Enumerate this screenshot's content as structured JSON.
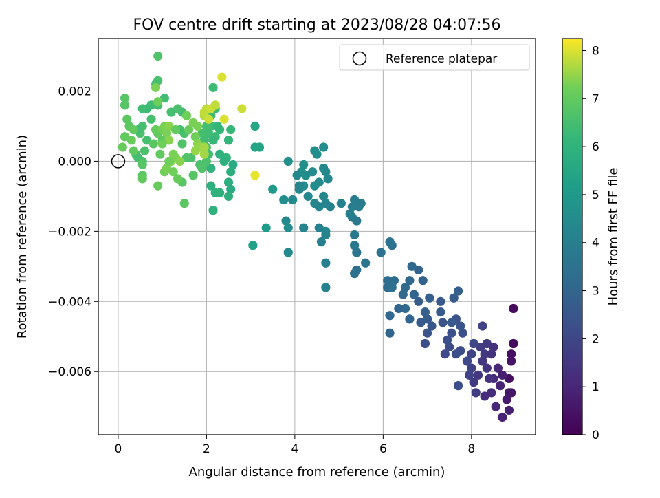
{
  "chart_data": {
    "type": "scatter",
    "title": "FOV centre drift starting at 2023/08/28 04:07:56",
    "xlabel": "Angular distance from reference (arcmin)",
    "ylabel": "Rotation from reference (arcmin)",
    "colorbar_label": "Hours from first FF file",
    "xlim": [
      -0.45,
      9.45
    ],
    "ylim": [
      -0.0078,
      0.0035
    ],
    "xticks": [
      0,
      2,
      4,
      6,
      8
    ],
    "xtick_labels": [
      "0",
      "2",
      "4",
      "6",
      "8"
    ],
    "yticks": [
      0.002,
      0.0,
      -0.002,
      -0.004,
      -0.006
    ],
    "ytick_labels": [
      "0.002",
      "0.000",
      "−0.002",
      "−0.004",
      "−0.006"
    ],
    "colorbar_range": [
      0,
      8.25
    ],
    "colorbar_ticks": [
      "0",
      "1",
      "2",
      "3",
      "4",
      "5",
      "6",
      "7",
      "8"
    ],
    "grid": true,
    "legend": {
      "position": "top-right",
      "entries": [
        "Reference platepar"
      ]
    },
    "reference_point": {
      "x": 0.0,
      "y": 0.0
    },
    "colormap": "viridis",
    "points": [
      [
        8.95,
        -0.0042,
        0.3
      ],
      [
        8.9,
        -0.0055,
        0.4
      ],
      [
        8.9,
        -0.0057,
        0.5
      ],
      [
        8.95,
        -0.0052,
        0.3
      ],
      [
        8.85,
        -0.0062,
        0.4
      ],
      [
        8.9,
        -0.0066,
        0.5
      ],
      [
        8.85,
        -0.0066,
        0.6
      ],
      [
        8.8,
        -0.0068,
        0.7
      ],
      [
        8.85,
        -0.0071,
        0.8
      ],
      [
        8.7,
        -0.0073,
        0.9
      ],
      [
        8.55,
        -0.007,
        1.0
      ],
      [
        8.65,
        -0.0064,
        0.9
      ],
      [
        8.6,
        -0.0059,
        1.0
      ],
      [
        8.7,
        -0.0061,
        0.8
      ],
      [
        8.5,
        -0.0062,
        1.1
      ],
      [
        8.45,
        -0.0066,
        1.2
      ],
      [
        8.4,
        -0.0062,
        1.3
      ],
      [
        8.3,
        -0.0067,
        1.2
      ],
      [
        8.35,
        -0.0059,
        1.4
      ],
      [
        8.25,
        -0.0057,
        1.5
      ],
      [
        8.3,
        -0.0055,
        1.6
      ],
      [
        8.2,
        -0.0053,
        1.7
      ],
      [
        8.35,
        -0.0052,
        1.6
      ],
      [
        8.45,
        -0.0055,
        1.4
      ],
      [
        8.5,
        -0.0053,
        1.3
      ],
      [
        8.15,
        -0.0061,
        1.5
      ],
      [
        8.05,
        -0.0063,
        1.6
      ],
      [
        8.1,
        -0.0066,
        1.7
      ],
      [
        8.0,
        -0.0059,
        1.8
      ],
      [
        7.95,
        -0.0061,
        1.9
      ],
      [
        8.0,
        -0.0055,
        1.9
      ],
      [
        8.05,
        -0.0052,
        2.0
      ],
      [
        7.9,
        -0.0057,
        2.1
      ],
      [
        8.25,
        -0.0047,
        1.8
      ],
      [
        7.7,
        -0.0064,
        2.2
      ],
      [
        7.75,
        -0.0054,
        2.2
      ],
      [
        7.65,
        -0.0055,
        2.3
      ],
      [
        7.8,
        -0.0049,
        2.3
      ],
      [
        7.75,
        -0.0047,
        2.4
      ],
      [
        7.65,
        -0.0045,
        2.4
      ],
      [
        7.55,
        -0.0049,
        2.3
      ],
      [
        7.5,
        -0.0053,
        2.2
      ],
      [
        7.4,
        -0.0055,
        2.1
      ],
      [
        7.45,
        -0.0051,
        2.3
      ],
      [
        7.35,
        -0.0046,
        2.5
      ],
      [
        7.3,
        -0.0043,
        2.6
      ],
      [
        7.3,
        -0.004,
        2.6
      ],
      [
        7.1,
        -0.0047,
        2.5
      ],
      [
        7.0,
        -0.0049,
        2.4
      ],
      [
        6.95,
        -0.0052,
        2.3
      ],
      [
        7.0,
        -0.0045,
        2.6
      ],
      [
        6.85,
        -0.0046,
        2.7
      ],
      [
        6.8,
        -0.004,
        2.7
      ],
      [
        6.95,
        -0.0043,
        2.8
      ],
      [
        7.05,
        -0.0039,
        2.8
      ],
      [
        7.6,
        -0.0039,
        2.7
      ],
      [
        7.7,
        -0.0037,
        2.8
      ],
      [
        7.55,
        -0.0046,
        2.6
      ],
      [
        6.8,
        -0.0031,
        2.9
      ],
      [
        6.9,
        -0.0034,
        2.9
      ],
      [
        6.7,
        -0.0038,
        3.0
      ],
      [
        6.65,
        -0.003,
        3.1
      ],
      [
        6.6,
        -0.0034,
        3.1
      ],
      [
        6.5,
        -0.0036,
        3.2
      ],
      [
        6.5,
        -0.0042,
        3.2
      ],
      [
        6.45,
        -0.0038,
        3.2
      ],
      [
        6.6,
        -0.0045,
        3.0
      ],
      [
        6.35,
        -0.0042,
        3.0
      ],
      [
        6.25,
        -0.0034,
        3.3
      ],
      [
        6.1,
        -0.0034,
        3.3
      ],
      [
        6.1,
        -0.0036,
        3.2
      ],
      [
        6.2,
        -0.0036,
        3.4
      ],
      [
        6.15,
        -0.0044,
        3.1
      ],
      [
        6.15,
        -0.0049,
        3.0
      ],
      [
        6.2,
        -0.0024,
        3.4
      ],
      [
        6.15,
        -0.0023,
        3.5
      ],
      [
        5.95,
        -0.0026,
        3.5
      ],
      [
        5.6,
        -0.0029,
        3.6
      ],
      [
        5.4,
        -0.0031,
        3.5
      ],
      [
        5.35,
        -0.0032,
        3.4
      ],
      [
        5.4,
        -0.0026,
        3.6
      ],
      [
        5.35,
        -0.0024,
        3.7
      ],
      [
        5.35,
        -0.0021,
        3.7
      ],
      [
        5.3,
        -0.0016,
        3.8
      ],
      [
        5.4,
        -0.0017,
        3.7
      ],
      [
        5.45,
        -0.0013,
        3.9
      ],
      [
        5.5,
        -0.0012,
        3.9
      ],
      [
        5.35,
        -0.0011,
        3.9
      ],
      [
        5.25,
        -0.0015,
        4.0
      ],
      [
        5.3,
        -0.0013,
        4.0
      ],
      [
        5.05,
        -0.0012,
        4.1
      ],
      [
        4.8,
        -0.0013,
        4.1
      ],
      [
        4.7,
        -0.0012,
        4.2
      ],
      [
        4.75,
        -0.0005,
        4.3
      ],
      [
        4.7,
        -0.0003,
        4.4
      ],
      [
        4.65,
        -0.0002,
        4.4
      ],
      [
        4.65,
        0.0004,
        4.5
      ],
      [
        4.55,
        -0.0006,
        4.5
      ],
      [
        4.45,
        -0.0007,
        4.5
      ],
      [
        4.45,
        0.0003,
        4.6
      ],
      [
        4.5,
        0.0002,
        4.6
      ],
      [
        4.4,
        -0.0003,
        4.5
      ],
      [
        4.25,
        -0.0004,
        4.5
      ],
      [
        4.2,
        -0.0001,
        4.6
      ],
      [
        4.15,
        -0.0003,
        4.6
      ],
      [
        4.2,
        -0.0007,
        4.5
      ],
      [
        4.1,
        -0.0008,
        4.4
      ],
      [
        4.05,
        -0.0004,
        4.4
      ],
      [
        4.1,
        -0.0007,
        4.3
      ],
      [
        4.3,
        -0.001,
        4.3
      ],
      [
        4.45,
        -0.0012,
        4.3
      ],
      [
        4.55,
        -0.0013,
        4.2
      ],
      [
        4.65,
        -0.001,
        4.3
      ],
      [
        4.7,
        -0.002,
        4.3
      ],
      [
        4.7,
        -0.0021,
        4.2
      ],
      [
        4.55,
        -0.0019,
        4.1
      ],
      [
        4.6,
        -0.0023,
        4.0
      ],
      [
        4.7,
        -0.0029,
        4.0
      ],
      [
        4.7,
        -0.0036,
        4.1
      ],
      [
        4.2,
        -0.0019,
        4.2
      ],
      [
        3.95,
        -0.0011,
        4.4
      ],
      [
        3.75,
        -0.0011,
        4.6
      ],
      [
        3.8,
        -0.0017,
        4.4
      ],
      [
        3.85,
        -0.0019,
        4.5
      ],
      [
        3.85,
        -0.0026,
        4.4
      ],
      [
        3.85,
        0.0,
        4.6
      ],
      [
        3.5,
        -0.0008,
        5.0
      ],
      [
        3.35,
        -0.0019,
        5.1
      ],
      [
        3.05,
        -0.0024,
        5.3
      ],
      [
        3.1,
        0.001,
        5.5
      ],
      [
        3.1,
        0.0004,
        5.4
      ],
      [
        3.2,
        0.0004,
        5.4
      ],
      [
        2.6,
        -0.0001,
        5.7
      ],
      [
        2.55,
        -0.0003,
        5.8
      ],
      [
        2.5,
        -0.0006,
        5.8
      ],
      [
        2.55,
        -0.0008,
        5.7
      ],
      [
        2.5,
        -0.001,
        5.8
      ],
      [
        2.3,
        -0.0009,
        5.9
      ],
      [
        2.2,
        -0.0009,
        6.0
      ],
      [
        2.15,
        -0.0014,
        5.9
      ],
      [
        2.1,
        -0.0007,
        5.9
      ],
      [
        2.1,
        -0.0002,
        6.0
      ],
      [
        2.3,
        0.0002,
        6.0
      ],
      [
        2.45,
        0.0001,
        6.1
      ],
      [
        2.4,
        0.0,
        5.9
      ],
      [
        2.5,
        0.0006,
        6.1
      ],
      [
        2.55,
        0.0009,
        6.2
      ],
      [
        2.15,
        0.0021,
        6.3
      ],
      [
        2.2,
        0.0015,
        6.3
      ],
      [
        2.1,
        0.0013,
        6.4
      ],
      [
        2.1,
        0.001,
        6.3
      ],
      [
        2.0,
        0.001,
        6.5
      ],
      [
        2.05,
        0.0008,
        6.4
      ],
      [
        2.2,
        0.0007,
        6.3
      ],
      [
        2.3,
        0.0009,
        6.2
      ],
      [
        2.25,
        0.001,
        6.1
      ],
      [
        2.15,
        0.0006,
        6.2
      ],
      [
        1.95,
        0.0006,
        6.4
      ],
      [
        1.85,
        0.0005,
        6.5
      ],
      [
        1.9,
        0.0008,
        6.5
      ],
      [
        2.0,
        0.0004,
        6.6
      ],
      [
        2.0,
        0.0,
        6.6
      ],
      [
        2.05,
        0.0002,
        6.5
      ],
      [
        1.85,
        -0.0001,
        6.6
      ],
      [
        1.9,
        -0.0002,
        6.7
      ],
      [
        1.65,
        0.0001,
        6.6
      ],
      [
        1.7,
        -0.0004,
        6.8
      ],
      [
        1.55,
        0.0001,
        6.7
      ],
      [
        1.5,
        -0.0012,
        6.9
      ],
      [
        1.45,
        -0.0006,
        6.8
      ],
      [
        1.45,
        0.0005,
        6.7
      ],
      [
        1.5,
        0.0008,
        6.6
      ],
      [
        1.4,
        0.0009,
        6.5
      ],
      [
        1.45,
        0.0014,
        6.4
      ],
      [
        1.35,
        0.0015,
        6.6
      ],
      [
        1.2,
        0.0014,
        6.5
      ],
      [
        1.05,
        0.0018,
        6.4
      ],
      [
        0.9,
        0.0023,
        6.6
      ],
      [
        0.85,
        0.0022,
        6.5
      ],
      [
        0.9,
        0.0016,
        6.4
      ],
      [
        0.9,
        0.003,
        6.7
      ],
      [
        0.75,
        0.0016,
        6.4
      ],
      [
        0.65,
        0.0015,
        6.3
      ],
      [
        0.75,
        0.0012,
        6.5
      ],
      [
        0.55,
        0.0015,
        6.4
      ],
      [
        0.55,
        0.001,
        6.5
      ],
      [
        0.5,
        0.0008,
        6.6
      ],
      [
        0.45,
        0.0009,
        6.4
      ],
      [
        0.65,
        0.0006,
        6.5
      ],
      [
        0.6,
        0.0003,
        6.6
      ],
      [
        0.4,
        0.0002,
        6.7
      ],
      [
        0.45,
        0.0001,
        6.5
      ],
      [
        0.55,
        0.0,
        6.6
      ],
      [
        0.55,
        -0.0001,
        6.8
      ],
      [
        0.55,
        -0.0004,
        6.9
      ],
      [
        0.55,
        -0.0005,
        7.0
      ],
      [
        0.9,
        -0.0007,
        7.1
      ],
      [
        1.05,
        -0.0003,
        7.2
      ],
      [
        1.1,
        -0.0002,
        7.3
      ],
      [
        1.25,
        -0.0003,
        7.2
      ],
      [
        1.2,
        0.0,
        7.4
      ],
      [
        1.3,
        0.0001,
        7.3
      ],
      [
        1.4,
        0.0,
        7.4
      ],
      [
        1.35,
        -0.0005,
        7.1
      ],
      [
        1.15,
        0.0,
        7.2
      ],
      [
        1.25,
        0.0002,
        7.3
      ],
      [
        0.95,
        0.0002,
        7.0
      ],
      [
        1.0,
        0.0006,
        6.9
      ],
      [
        0.9,
        0.0008,
        7.0
      ],
      [
        0.8,
        0.0005,
        6.9
      ],
      [
        0.85,
        0.0009,
        7.1
      ],
      [
        1.0,
        0.0009,
        7.2
      ],
      [
        1.05,
        0.001,
        7.3
      ],
      [
        1.15,
        0.001,
        7.4
      ],
      [
        1.1,
        0.0008,
        7.3
      ],
      [
        1.15,
        0.0006,
        7.4
      ],
      [
        1.0,
        0.0005,
        7.2
      ],
      [
        1.3,
        0.0009,
        7.0
      ],
      [
        1.6,
        0.0009,
        7.1
      ],
      [
        1.55,
        0.0013,
        7.2
      ],
      [
        1.7,
        0.0011,
        7.3
      ],
      [
        1.8,
        0.001,
        7.3
      ],
      [
        1.75,
        0.0007,
        7.2
      ],
      [
        1.8,
        0.0005,
        7.4
      ],
      [
        1.75,
        0.0003,
        7.5
      ],
      [
        1.85,
        0.0004,
        7.5
      ],
      [
        1.95,
        0.0004,
        7.6
      ],
      [
        1.95,
        0.0002,
        7.6
      ],
      [
        1.95,
        0.0013,
        7.7
      ],
      [
        1.95,
        0.0014,
        7.8
      ],
      [
        2.0,
        0.0015,
        7.8
      ],
      [
        2.1,
        0.0015,
        7.9
      ],
      [
        2.05,
        0.0012,
        7.9
      ],
      [
        2.2,
        0.0016,
        7.8
      ],
      [
        2.35,
        0.0024,
        8.0
      ],
      [
        2.4,
        0.0012,
        8.0
      ],
      [
        2.8,
        0.0015,
        7.9
      ],
      [
        3.1,
        -0.0004,
        8.1
      ],
      [
        0.15,
        0.0018,
        6.8
      ],
      [
        0.15,
        0.0016,
        6.8
      ],
      [
        0.2,
        0.0012,
        6.9
      ],
      [
        0.25,
        0.001,
        6.9
      ],
      [
        0.35,
        0.0009,
        7.0
      ],
      [
        0.15,
        0.0007,
        7.0
      ],
      [
        0.3,
        0.0006,
        7.1
      ],
      [
        0.1,
        0.0004,
        7.1
      ],
      [
        0.35,
        0.0003,
        7.0
      ],
      [
        0.9,
        0.0017,
        7.2
      ],
      [
        0.85,
        0.0021,
        7.3
      ]
    ]
  }
}
